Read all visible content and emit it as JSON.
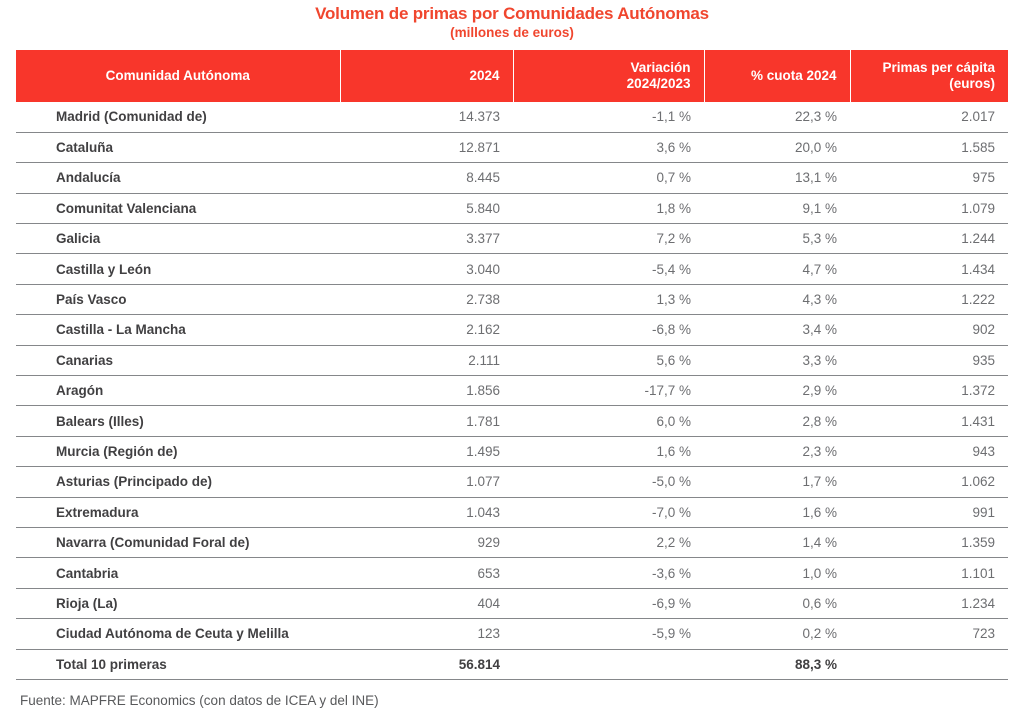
{
  "title": "Volumen de primas por Comunidades Autónomas",
  "subtitle": "(millones de euros)",
  "colors": {
    "header_bg": "#f8362b",
    "title_text": "#f0462e",
    "header_text": "#ffffff",
    "row_label": "#414042",
    "row_value": "#6d6e71",
    "row_border": "#85878a",
    "footer_text": "#58595b"
  },
  "table": {
    "columns": [
      "Comunidad Autónoma",
      "2024",
      "Variación\n2024/2023",
      "% cuota 2024",
      "Primas per cápita\n(euros)"
    ],
    "rows": [
      {
        "name": "Madrid (Comunidad de)",
        "y2024": "14.373",
        "variacion": "-1,1 %",
        "cuota": "22,3 %",
        "per_capita": "2.017"
      },
      {
        "name": "Cataluña",
        "y2024": "12.871",
        "variacion": "3,6 %",
        "cuota": "20,0 %",
        "per_capita": "1.585"
      },
      {
        "name": "Andalucía",
        "y2024": "8.445",
        "variacion": "0,7 %",
        "cuota": "13,1 %",
        "per_capita": "975"
      },
      {
        "name": "Comunitat Valenciana",
        "y2024": "5.840",
        "variacion": "1,8 %",
        "cuota": "9,1 %",
        "per_capita": "1.079"
      },
      {
        "name": "Galicia",
        "y2024": "3.377",
        "variacion": "7,2 %",
        "cuota": "5,3 %",
        "per_capita": "1.244"
      },
      {
        "name": "Castilla y León",
        "y2024": "3.040",
        "variacion": "-5,4 %",
        "cuota": "4,7 %",
        "per_capita": "1.434"
      },
      {
        "name": "País Vasco",
        "y2024": "2.738",
        "variacion": "1,3 %",
        "cuota": "4,3 %",
        "per_capita": "1.222"
      },
      {
        "name": "Castilla - La Mancha",
        "y2024": "2.162",
        "variacion": "-6,8 %",
        "cuota": "3,4 %",
        "per_capita": "902"
      },
      {
        "name": "Canarias",
        "y2024": "2.111",
        "variacion": "5,6 %",
        "cuota": "3,3 %",
        "per_capita": "935"
      },
      {
        "name": "Aragón",
        "y2024": "1.856",
        "variacion": "-17,7 %",
        "cuota": "2,9 %",
        "per_capita": "1.372"
      },
      {
        "name": "Balears (Illes)",
        "y2024": "1.781",
        "variacion": "6,0 %",
        "cuota": "2,8 %",
        "per_capita": "1.431"
      },
      {
        "name": "Murcia (Región de)",
        "y2024": "1.495",
        "variacion": "1,6 %",
        "cuota": "2,3 %",
        "per_capita": "943"
      },
      {
        "name": "Asturias (Principado de)",
        "y2024": "1.077",
        "variacion": "-5,0 %",
        "cuota": "1,7 %",
        "per_capita": "1.062"
      },
      {
        "name": "Extremadura",
        "y2024": "1.043",
        "variacion": "-7,0 %",
        "cuota": "1,6 %",
        "per_capita": "991"
      },
      {
        "name": "Navarra (Comunidad Foral de)",
        "y2024": "929",
        "variacion": "2,2 %",
        "cuota": "1,4 %",
        "per_capita": "1.359"
      },
      {
        "name": "Cantabria",
        "y2024": "653",
        "variacion": "-3,6 %",
        "cuota": "1,0 %",
        "per_capita": "1.101"
      },
      {
        "name": "Rioja (La)",
        "y2024": "404",
        "variacion": "-6,9 %",
        "cuota": "0,6 %",
        "per_capita": "1.234"
      },
      {
        "name": "Ciudad Autónoma de Ceuta y Melilla",
        "y2024": "123",
        "variacion": "-5,9 %",
        "cuota": "0,2 %",
        "per_capita": "723"
      }
    ],
    "total_row": {
      "name": "Total 10 primeras",
      "y2024": "56.814",
      "variacion": "",
      "cuota": "88,3 %",
      "per_capita": ""
    }
  },
  "footer": "Fuente: MAPFRE Economics (con datos de ICEA y del INE)"
}
